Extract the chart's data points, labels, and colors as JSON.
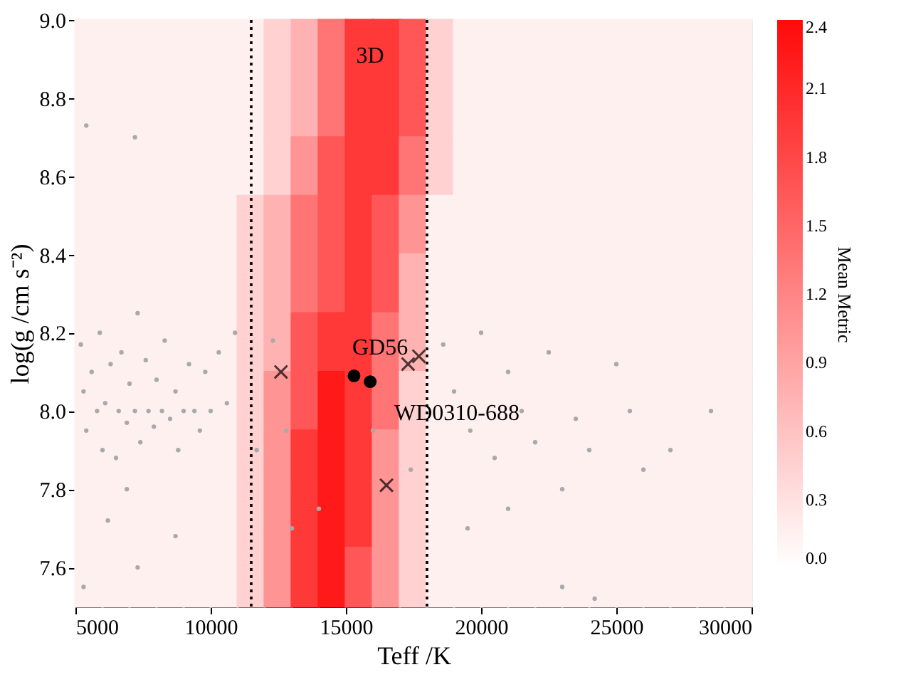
{
  "chart_data": {
    "type": "scatter",
    "xlabel": "Teff /K",
    "ylabel": "log(g /cm s⁻²)",
    "clabel": "Mean Metric",
    "xlim": [
      5000,
      30000
    ],
    "ylim": [
      7.5,
      9.0
    ],
    "xticks": [
      5000,
      10000,
      15000,
      20000,
      25000,
      30000
    ],
    "yticks": [
      {
        "value": 7.6,
        "label": "7.6"
      },
      {
        "value": 7.8,
        "label": "7.8"
      },
      {
        "value": 8.0,
        "label": "8.0"
      },
      {
        "value": 8.2,
        "label": "8.2"
      },
      {
        "value": 8.4,
        "label": "8.4"
      },
      {
        "value": 8.6,
        "label": "8.6"
      },
      {
        "value": 8.8,
        "label": "8.8"
      },
      {
        "value": 9.0,
        "label": "9.0"
      }
    ],
    "clim": [
      0,
      2.4
    ],
    "cticks": [
      {
        "value": 0,
        "label": "0.0"
      },
      0.3,
      0.6,
      0.9,
      1.2,
      1.5,
      1.8,
      2.1,
      2.4
    ],
    "series": [
      {
        "type": "scatter",
        "marker": "square",
        "x": [
          5500,
          6500,
          7500,
          8500,
          9500,
          10500,
          11500,
          12500,
          13500,
          14500,
          15500,
          16500,
          17500,
          18500,
          19500,
          20500,
          21500,
          22500,
          23500,
          24500,
          25500,
          26500,
          27500,
          28500,
          29500,
          5500,
          6500,
          7500,
          8500,
          9500,
          10500,
          11500,
          12500,
          13500,
          14500,
          15500,
          16500,
          17500,
          18500,
          19500,
          20500,
          21500,
          22500,
          23500,
          24500,
          25500,
          26500,
          27500,
          28500,
          29500,
          5500,
          6500,
          7500,
          8500,
          9500,
          10500,
          11500,
          12500,
          13500,
          14500,
          15500,
          16500,
          17500,
          18500,
          19500,
          20500,
          21500,
          22500,
          23500,
          24500,
          25500,
          26500,
          27500,
          28500,
          29500,
          5500,
          6500,
          7500,
          8500,
          9500,
          10500,
          11500,
          12500,
          13500,
          14500,
          15500,
          16500,
          17500,
          18500,
          19500,
          20500,
          21500,
          22500,
          23500,
          24500,
          25500,
          26500,
          27500,
          28500,
          29500,
          5500,
          6500,
          7500,
          8500,
          9500,
          10500,
          11500,
          12500,
          13500,
          14500,
          15500,
          16500,
          17500,
          18500,
          19500,
          20500,
          21500,
          22500,
          23500,
          24500,
          25500,
          26500,
          27500,
          28500,
          29500,
          5500,
          6500,
          7500,
          8500,
          9500,
          10500,
          11500,
          12500,
          13500,
          14500,
          15500,
          16500,
          17500,
          18500,
          19500,
          20500,
          21500,
          22500,
          23500,
          24500,
          25500,
          26500,
          27500,
          28500,
          29500,
          5500,
          6500,
          7500,
          8500,
          9500,
          10500,
          11500,
          12500,
          13500,
          14500,
          15500,
          16500,
          17500,
          18500,
          19500,
          20500,
          21500,
          22500,
          23500,
          24500,
          25500,
          26500,
          27500,
          28500,
          29500,
          5500,
          6500,
          7500,
          8500,
          9500,
          10500,
          11500,
          12500,
          13500,
          14500,
          15500,
          16500,
          17500,
          18500,
          19500,
          20500,
          21500,
          22500,
          23500,
          24500,
          25500,
          26500,
          27500,
          28500,
          29500,
          5500,
          6500,
          7500,
          8500,
          9500,
          10500,
          11500,
          12500,
          13500,
          14500,
          15500,
          16500,
          17500,
          18500,
          19500,
          20500,
          21500,
          22500,
          23500,
          24500,
          25500,
          26500,
          27500,
          28500,
          29500,
          5500,
          6500,
          7500,
          8500,
          9500,
          10500,
          11500,
          12500,
          13500,
          14500,
          15500,
          16500,
          17500,
          18500,
          19500,
          20500,
          21500,
          22500,
          23500,
          24500,
          25500,
          26500,
          27500,
          28500,
          29500
        ],
        "values": [
          8.925,
          8.925,
          8.925,
          8.925,
          8.925,
          8.925,
          8.925,
          8.925,
          8.925,
          8.925,
          8.925,
          8.925,
          8.925,
          8.925,
          8.925,
          8.925,
          8.925,
          8.925,
          8.925,
          8.925,
          8.925,
          8.925,
          8.925,
          8.925,
          8.925,
          8.775,
          8.775,
          8.775,
          8.775,
          8.775,
          8.775,
          8.775,
          8.775,
          8.775,
          8.775,
          8.775,
          8.775,
          8.775,
          8.775,
          8.775,
          8.775,
          8.775,
          8.775,
          8.775,
          8.775,
          8.775,
          8.775,
          8.775,
          8.775,
          8.775,
          8.625,
          8.625,
          8.625,
          8.625,
          8.625,
          8.625,
          8.625,
          8.625,
          8.625,
          8.625,
          8.625,
          8.625,
          8.625,
          8.625,
          8.625,
          8.625,
          8.625,
          8.625,
          8.625,
          8.625,
          8.625,
          8.625,
          8.625,
          8.625,
          8.625,
          8.475,
          8.475,
          8.475,
          8.475,
          8.475,
          8.475,
          8.475,
          8.475,
          8.475,
          8.475,
          8.475,
          8.475,
          8.475,
          8.475,
          8.475,
          8.475,
          8.475,
          8.475,
          8.475,
          8.475,
          8.475,
          8.475,
          8.475,
          8.475,
          8.475,
          8.325,
          8.325,
          8.325,
          8.325,
          8.325,
          8.325,
          8.325,
          8.325,
          8.325,
          8.325,
          8.325,
          8.325,
          8.325,
          8.325,
          8.325,
          8.325,
          8.325,
          8.325,
          8.325,
          8.325,
          8.325,
          8.325,
          8.325,
          8.325,
          8.325,
          8.175,
          8.175,
          8.175,
          8.175,
          8.175,
          8.175,
          8.175,
          8.175,
          8.175,
          8.175,
          8.175,
          8.175,
          8.175,
          8.175,
          8.175,
          8.175,
          8.175,
          8.175,
          8.175,
          8.175,
          8.175,
          8.175,
          8.175,
          8.175,
          8.175,
          8.025,
          8.025,
          8.025,
          8.025,
          8.025,
          8.025,
          8.025,
          8.025,
          8.025,
          8.025,
          8.025,
          8.025,
          8.025,
          8.025,
          8.025,
          8.025,
          8.025,
          8.025,
          8.025,
          8.025,
          8.025,
          8.025,
          8.025,
          8.025,
          8.025,
          7.875,
          7.875,
          7.875,
          7.875,
          7.875,
          7.875,
          7.875,
          7.875,
          7.875,
          7.875,
          7.875,
          7.875,
          7.875,
          7.875,
          7.875,
          7.875,
          7.875,
          7.875,
          7.875,
          7.875,
          7.875,
          7.875,
          7.875,
          7.875,
          7.875,
          7.725,
          7.725,
          7.725,
          7.725,
          7.725,
          7.725,
          7.725,
          7.725,
          7.725,
          7.725,
          7.725,
          7.725,
          7.725,
          7.725,
          7.725,
          7.725,
          7.725,
          7.725,
          7.725,
          7.725,
          7.725,
          7.725,
          7.725,
          7.725,
          7.725,
          7.575,
          7.575,
          7.575,
          7.575,
          7.575,
          7.575,
          7.575,
          7.575,
          7.575,
          7.575,
          7.575,
          7.575,
          7.575,
          7.575,
          7.575,
          7.575,
          7.575,
          7.575,
          7.575,
          7.575,
          7.575,
          7.575,
          7.575,
          7.575,
          7.575
        ],
        "colors": [
          "#fff0f0",
          "#fff0f0",
          "#fff0f0",
          "#fff0f0",
          "#fff0f0",
          "#fff0f0",
          "#fff0f0",
          "#ffd1d1",
          "#ffb2b2",
          "#ff7575",
          "#ff3838",
          "#ff3838",
          "#ff5757",
          "#ffd1d1",
          "#fff0f0",
          "#fff0f0",
          "#fff0f0",
          "#fff0f0",
          "#fff0f0",
          "#fff0f0",
          "#fff0f0",
          "#fff0f0",
          "#fff0f0",
          "#fff0f0",
          "#fff0f0",
          "#fff0f0",
          "#fff0f0",
          "#fff0f0",
          "#fff0f0",
          "#fff0f0",
          "#fff0f0",
          "#fff0f0",
          "#ffd1d1",
          "#ffb2b2",
          "#ff7575",
          "#ff3838",
          "#ff3838",
          "#ff5757",
          "#ffd1d1",
          "#fff0f0",
          "#fff0f0",
          "#fff0f0",
          "#fff0f0",
          "#fff0f0",
          "#fff0f0",
          "#fff0f0",
          "#fff0f0",
          "#fff0f0",
          "#fff0f0",
          "#fff0f0",
          "#fff0f0",
          "#fff0f0",
          "#fff0f0",
          "#fff0f0",
          "#fff0f0",
          "#fff0f0",
          "#fff0f0",
          "#ffd1d1",
          "#ff9494",
          "#ff5757",
          "#ff3838",
          "#ff3838",
          "#ff7575",
          "#ffd1d1",
          "#fff0f0",
          "#fff0f0",
          "#fff0f0",
          "#fff0f0",
          "#fff0f0",
          "#fff0f0",
          "#fff0f0",
          "#fff0f0",
          "#fff0f0",
          "#fff0f0",
          "#fff0f0",
          "#fff0f0",
          "#fff0f0",
          "#fff0f0",
          "#fff0f0",
          "#fff0f0",
          "#fff0f0",
          "#ffd1d1",
          "#ffb2b2",
          "#ff7575",
          "#ff5757",
          "#ff3838",
          "#ff5757",
          "#ff9494",
          "#fff0f0",
          "#fff0f0",
          "#fff0f0",
          "#fff0f0",
          "#fff0f0",
          "#fff0f0",
          "#fff0f0",
          "#fff0f0",
          "#fff0f0",
          "#fff0f0",
          "#fff0f0",
          "#fff0f0",
          "#fff0f0",
          "#fff0f0",
          "#fff0f0",
          "#fff0f0",
          "#fff0f0",
          "#fff0f0",
          "#ffd1d1",
          "#ffb2b2",
          "#ff7575",
          "#ff5757",
          "#ff3838",
          "#ff5757",
          "#ffb2b2",
          "#fff0f0",
          "#fff0f0",
          "#fff0f0",
          "#fff0f0",
          "#fff0f0",
          "#fff0f0",
          "#fff0f0",
          "#fff0f0",
          "#fff0f0",
          "#fff0f0",
          "#fff0f0",
          "#fff0f0",
          "#fff0f0",
          "#fff0f0",
          "#fff0f0",
          "#fff0f0",
          "#fff0f0",
          "#fff0f0",
          "#ffd1d1",
          "#ffb2b2",
          "#ff5757",
          "#ff3838",
          "#ff3838",
          "#ff7575",
          "#ffb2b2",
          "#fff0f0",
          "#fff0f0",
          "#fff0f0",
          "#fff0f0",
          "#fff0f0",
          "#fff0f0",
          "#fff0f0",
          "#fff0f0",
          "#fff0f0",
          "#fff0f0",
          "#fff0f0",
          "#fff0f0",
          "#fff0f0",
          "#fff0f0",
          "#fff0f0",
          "#fff0f0",
          "#fff0f0",
          "#fff0f0",
          "#ffd1d1",
          "#ff9494",
          "#ff5757",
          "#ff1919",
          "#ff3838",
          "#ff7575",
          "#ffd1d1",
          "#fff0f0",
          "#fff0f0",
          "#fff0f0",
          "#fff0f0",
          "#fff0f0",
          "#fff0f0",
          "#fff0f0",
          "#fff0f0",
          "#fff0f0",
          "#fff0f0",
          "#fff0f0",
          "#fff0f0",
          "#fff0f0",
          "#fff0f0",
          "#fff0f0",
          "#fff0f0",
          "#fff0f0",
          "#fff0f0",
          "#ffd1d1",
          "#ff9494",
          "#ff3838",
          "#ff1919",
          "#ff3838",
          "#ff9494",
          "#ffd1d1",
          "#fff0f0",
          "#fff0f0",
          "#fff0f0",
          "#fff0f0",
          "#fff0f0",
          "#fff0f0",
          "#fff0f0",
          "#fff0f0",
          "#fff0f0",
          "#fff0f0",
          "#fff0f0",
          "#fff0f0",
          "#fff0f0",
          "#fff0f0",
          "#fff0f0",
          "#fff0f0",
          "#fff0f0",
          "#fff0f0",
          "#ffd1d1",
          "#ff9494",
          "#ff3838",
          "#ff1919",
          "#ff3838",
          "#ff9494",
          "#ffd1d1",
          "#fff0f0",
          "#fff0f0",
          "#fff0f0",
          "#fff0f0",
          "#fff0f0",
          "#fff0f0",
          "#fff0f0",
          "#fff0f0",
          "#fff0f0",
          "#fff0f0",
          "#fff0f0",
          "#fff0f0",
          "#fff0f0",
          "#fff0f0",
          "#fff0f0",
          "#fff0f0",
          "#fff0f0",
          "#fff0f0",
          "#ffd1d1",
          "#ff9494",
          "#ff3838",
          "#ff1919",
          "#ff5757",
          "#ff9494",
          "#ffd1d1",
          "#fff0f0",
          "#fff0f0",
          "#fff0f0",
          "#fff0f0",
          "#fff0f0",
          "#fff0f0",
          "#fff0f0",
          "#fff0f0",
          "#fff0f0",
          "#fff0f0",
          "#fff0f0",
          "#fff0f0"
        ],
        "cvalues": [
          0.15,
          0.15,
          0.15,
          0.15,
          0.15,
          0.15,
          0.15,
          0.45,
          0.75,
          1.35,
          1.95,
          1.95,
          1.65,
          0.45,
          0.15,
          0.15,
          0.15,
          0.15,
          0.15,
          0.15,
          0.15,
          0.15,
          0.15,
          0.15,
          0.15,
          0.15,
          0.15,
          0.15,
          0.15,
          0.15,
          0.15,
          0.15,
          0.45,
          0.75,
          1.35,
          1.95,
          1.95,
          1.65,
          0.45,
          0.15,
          0.15,
          0.15,
          0.15,
          0.15,
          0.15,
          0.15,
          0.15,
          0.15,
          0.15,
          0.15,
          0.15,
          0.15,
          0.15,
          0.15,
          0.15,
          0.15,
          0.15,
          0.45,
          1.05,
          1.65,
          1.95,
          1.95,
          1.35,
          0.45,
          0.15,
          0.15,
          0.15,
          0.15,
          0.15,
          0.15,
          0.15,
          0.15,
          0.15,
          0.15,
          0.15,
          0.15,
          0.15,
          0.15,
          0.15,
          0.15,
          0.15,
          0.45,
          0.75,
          1.35,
          1.65,
          1.95,
          1.65,
          1.05,
          0.15,
          0.15,
          0.15,
          0.15,
          0.15,
          0.15,
          0.15,
          0.15,
          0.15,
          0.15,
          0.15,
          0.15,
          0.15,
          0.15,
          0.15,
          0.15,
          0.15,
          0.15,
          0.45,
          0.75,
          1.35,
          1.65,
          1.95,
          1.65,
          0.75,
          0.15,
          0.15,
          0.15,
          0.15,
          0.15,
          0.15,
          0.15,
          0.15,
          0.15,
          0.15,
          0.15,
          0.15,
          0.15,
          0.15,
          0.15,
          0.15,
          0.15,
          0.15,
          0.45,
          0.75,
          1.65,
          1.95,
          1.95,
          1.35,
          0.75,
          0.15,
          0.15,
          0.15,
          0.15,
          0.15,
          0.15,
          0.15,
          0.15,
          0.15,
          0.15,
          0.15,
          0.15,
          0.15,
          0.15,
          0.15,
          0.15,
          0.15,
          0.15,
          0.45,
          1.05,
          1.65,
          2.25,
          1.95,
          1.35,
          0.45,
          0.15,
          0.15,
          0.15,
          0.15,
          0.15,
          0.15,
          0.15,
          0.15,
          0.15,
          0.15,
          0.15,
          0.15,
          0.15,
          0.15,
          0.15,
          0.15,
          0.15,
          0.15,
          0.45,
          1.05,
          1.95,
          2.25,
          1.95,
          1.05,
          0.45,
          0.15,
          0.15,
          0.15,
          0.15,
          0.15,
          0.15,
          0.15,
          0.15,
          0.15,
          0.15,
          0.15,
          0.15,
          0.15,
          0.15,
          0.15,
          0.15,
          0.15,
          0.15,
          0.45,
          1.05,
          1.95,
          2.25,
          1.95,
          1.05,
          0.45,
          0.15,
          0.15,
          0.15,
          0.15,
          0.15,
          0.15,
          0.15,
          0.15,
          0.15,
          0.15,
          0.15,
          0.15,
          0.15,
          0.15,
          0.15,
          0.15,
          0.15,
          0.15,
          0.45,
          1.05,
          1.95,
          2.25,
          1.65,
          1.05,
          0.45,
          0.15,
          0.15,
          0.15,
          0.15,
          0.15,
          0.15,
          0.15,
          0.15,
          0.15,
          0.15,
          0.15,
          0.15
        ]
      },
      {
        "type": "scatter",
        "marker": "circle",
        "color": "#a9a9a9",
        "x": [
          5200,
          5300,
          5400,
          5600,
          5800,
          5900,
          6000,
          6100,
          6300,
          6500,
          6600,
          6700,
          6900,
          7000,
          7200,
          7300,
          7400,
          7600,
          7700,
          7900,
          8000,
          8200,
          8300,
          8500,
          8700,
          8800,
          9000,
          9200,
          9400,
          9600,
          9800,
          10000,
          10300,
          10600,
          10900,
          5300,
          6200,
          7300,
          6900,
          8700,
          5400,
          7200,
          12300,
          11700,
          12800,
          13000,
          14000,
          16000,
          17400,
          18600,
          19000,
          19600,
          20000,
          20500,
          21000,
          21500,
          22000,
          22500,
          23000,
          23500,
          24000,
          25000,
          25500,
          26000,
          27000,
          28500,
          23000,
          24200,
          21000,
          19500
        ],
        "values": [
          8.17,
          8.05,
          7.95,
          8.1,
          8.0,
          8.2,
          7.9,
          8.02,
          8.12,
          7.88,
          8.0,
          8.15,
          7.97,
          8.07,
          8.0,
          8.25,
          7.92,
          8.13,
          8.0,
          7.96,
          8.08,
          8.0,
          8.18,
          7.98,
          8.05,
          7.9,
          8.0,
          8.12,
          8.0,
          7.95,
          8.1,
          8.0,
          8.15,
          8.02,
          8.2,
          7.55,
          7.72,
          7.6,
          7.8,
          7.68,
          8.73,
          8.7,
          8.18,
          7.9,
          7.95,
          7.7,
          7.75,
          7.95,
          7.85,
          8.17,
          8.05,
          7.95,
          8.2,
          7.88,
          8.1,
          8.0,
          7.92,
          8.15,
          7.8,
          7.98,
          7.9,
          8.12,
          8.0,
          7.85,
          7.9,
          8.0,
          7.55,
          7.52,
          7.75,
          7.7
        ]
      },
      {
        "type": "scatter",
        "marker": "circle",
        "color": "#000000",
        "x": [
          15300,
          15900
        ],
        "values": [
          8.09,
          8.075
        ]
      },
      {
        "type": "scatter",
        "marker": "cross",
        "color": "#000000",
        "x": [
          12600,
          16500,
          17300,
          17700
        ],
        "values": [
          8.1,
          7.81,
          8.12,
          8.14
        ]
      }
    ],
    "ref_lines": [
      {
        "axis": "x",
        "value": 11500,
        "color": "#000000",
        "line_style": "dotted"
      },
      {
        "axis": "x",
        "value": 18000,
        "color": "#000000",
        "line_style": "dotted"
      }
    ],
    "annotations": [
      "3D",
      "GD56",
      "WD0310-688"
    ]
  }
}
